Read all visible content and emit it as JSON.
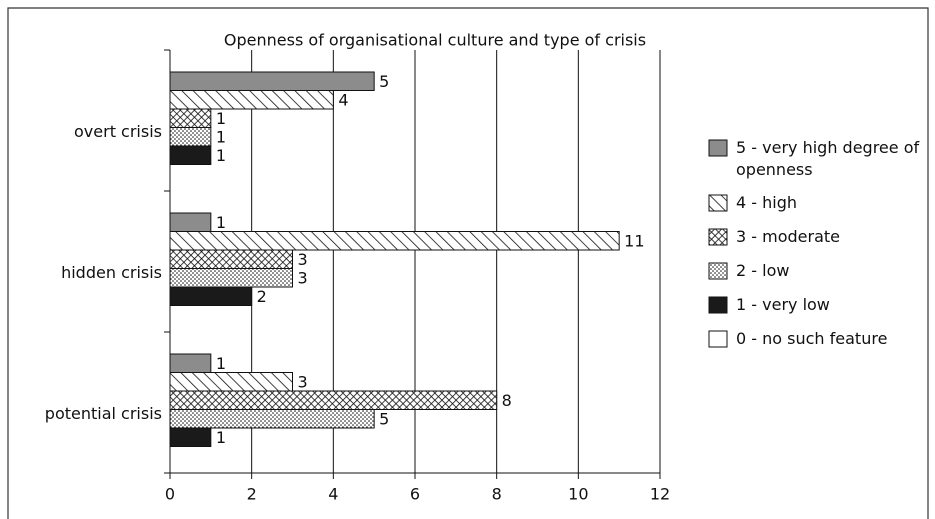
{
  "chart_data": {
    "type": "bar",
    "orientation": "horizontal",
    "title": "Openness of organisational culture and type of crisis",
    "categories": [
      "overt crisis",
      "hidden crisis",
      "potential crisis"
    ],
    "series": [
      {
        "name": "5 - very high degree of openness",
        "color": "#8c8c8c",
        "pattern": "solid",
        "values": [
          5,
          1,
          1
        ]
      },
      {
        "name": "4 - high",
        "color": "#ffffff",
        "pattern": "diagonal",
        "values": [
          4,
          11,
          3
        ]
      },
      {
        "name": "3 - moderate",
        "color": "#ffffff",
        "pattern": "crosshatch",
        "values": [
          1,
          3,
          8
        ]
      },
      {
        "name": "2 - low",
        "color": "#ffffff",
        "pattern": "dots",
        "values": [
          1,
          3,
          5
        ]
      },
      {
        "name": "1 - very low",
        "color": "#1a1a1a",
        "pattern": "solid",
        "values": [
          1,
          2,
          1
        ]
      },
      {
        "name": "0 - no such feature",
        "color": "#ffffff",
        "pattern": "solid",
        "values": [
          0,
          0,
          0
        ]
      }
    ],
    "xlim": [
      0,
      12
    ],
    "xticks": [
      0,
      2,
      4,
      6,
      8,
      10,
      12
    ],
    "grid": true,
    "legend": "right"
  }
}
